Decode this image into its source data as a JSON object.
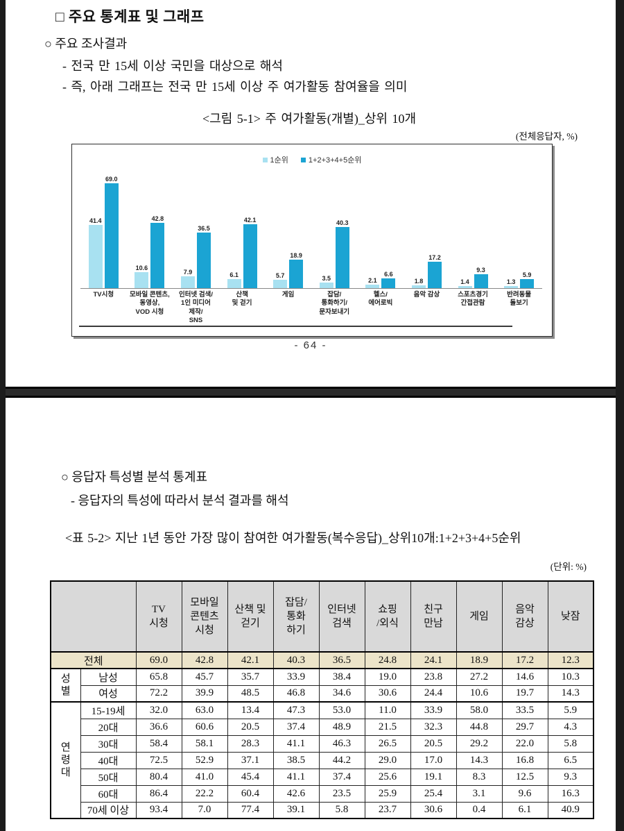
{
  "page1": {
    "heading": "□ 주요 통계표 및 그래프",
    "bullet": "○ 주요 조사결과",
    "sub_bullets": [
      "- 전국 만 15세 이상 국민을 대상으로 해석",
      "- 즉, 아래 그래프는 전국 만 15세 이상 주 여가활동 참여율을 의미"
    ],
    "figure_title": "<그림 5-1> 주 여가활동(개별)_상위 10개",
    "unit_note": "(전체응답자, %)",
    "page_number": "- 64 -"
  },
  "chart_data": {
    "type": "bar",
    "title": "<그림 5-1> 주 여가활동(개별)_상위 10개",
    "unit": "(전체응답자, %)",
    "categories": [
      "TV시청",
      "모바일 콘텐츠,\n동영상,\nVOD 시청",
      "인터넷 검색/\n1인 미디어\n제작/\nSNS",
      "산책\n및 걷기",
      "게임",
      "잡담/\n통화하기/\n문자보내기",
      "헬스/\n에어로빅",
      "음악 감상",
      "스포츠경기\n간접관람",
      "반려동물\n돌보기"
    ],
    "series": [
      {
        "name": "1순위",
        "color": "#a8e1f1",
        "values": [
          41.4,
          10.6,
          7.9,
          6.1,
          5.7,
          3.5,
          2.1,
          1.8,
          1.4,
          1.3
        ]
      },
      {
        "name": "1+2+3+4+5순위",
        "color": "#1ba4d3",
        "values": [
          69.0,
          42.8,
          36.5,
          42.1,
          18.9,
          40.3,
          6.6,
          17.2,
          9.3,
          5.9
        ]
      }
    ],
    "ylim": [
      0,
      80
    ],
    "grid": false,
    "legend_position": "top"
  },
  "page2": {
    "bullet": "○ 응답자 특성별 분석 통계표",
    "sub_bullet": "- 응답자의 특성에 따라서 분석 결과를 해석",
    "table_title": "<표 5-2> 지난 1년 동안 가장 많이 참여한 여가활동(복수응답)_상위10개:1+2+3+4+5순위",
    "unit_note": "(단위: %)",
    "table": {
      "columns": [
        "TV\n시청",
        "모바일\n콘텐츠\n시청",
        "산책 및\n걷기",
        "잡담/\n통화\n하기",
        "인터넷\n검색",
        "쇼핑\n/외식",
        "친구\n만남",
        "게임",
        "음악\n감상",
        "낮잠"
      ],
      "total_row": {
        "label": "전체",
        "values": [
          69.0,
          42.8,
          42.1,
          40.3,
          36.5,
          24.8,
          24.1,
          18.9,
          17.2,
          12.3
        ]
      },
      "groups": [
        {
          "label": "성별",
          "rows": [
            {
              "label": "남성",
              "values": [
                65.8,
                45.7,
                35.7,
                33.9,
                38.4,
                19.0,
                23.8,
                27.2,
                14.6,
                10.3
              ]
            },
            {
              "label": "여성",
              "values": [
                72.2,
                39.9,
                48.5,
                46.8,
                34.6,
                30.6,
                24.4,
                10.6,
                19.7,
                14.3
              ]
            }
          ]
        },
        {
          "label": "연령대",
          "rows": [
            {
              "label": "15-19세",
              "values": [
                32.0,
                63.0,
                13.4,
                47.3,
                53.0,
                11.0,
                33.9,
                58.0,
                33.5,
                5.9
              ]
            },
            {
              "label": "20대",
              "values": [
                36.6,
                60.6,
                20.5,
                37.4,
                48.9,
                21.5,
                32.3,
                44.8,
                29.7,
                4.3
              ]
            },
            {
              "label": "30대",
              "values": [
                58.4,
                58.1,
                28.3,
                41.1,
                46.3,
                26.5,
                20.5,
                29.2,
                22.0,
                5.8
              ]
            },
            {
              "label": "40대",
              "values": [
                72.5,
                52.9,
                37.1,
                38.5,
                44.2,
                29.0,
                17.0,
                14.3,
                16.8,
                6.5
              ]
            },
            {
              "label": "50대",
              "values": [
                80.4,
                41.0,
                45.4,
                41.1,
                37.4,
                25.6,
                19.1,
                8.3,
                12.5,
                9.3
              ]
            },
            {
              "label": "60대",
              "values": [
                86.4,
                22.2,
                60.4,
                42.6,
                23.5,
                25.9,
                25.4,
                3.1,
                9.6,
                16.3
              ]
            },
            {
              "label": "70세 이상",
              "values": [
                93.4,
                7.0,
                77.4,
                39.1,
                5.8,
                23.7,
                30.6,
                0.4,
                6.1,
                40.9
              ]
            }
          ]
        }
      ],
      "colors": {
        "header_bg": "#d9d9d9",
        "total_bg": "#ece4c9",
        "bar_light": "#a8e1f1",
        "bar_dark": "#1ba4d3"
      }
    }
  }
}
